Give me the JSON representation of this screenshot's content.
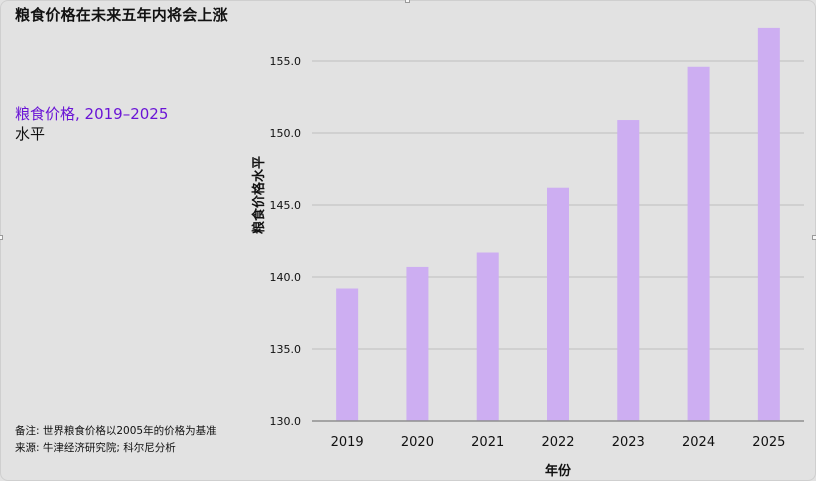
{
  "page": {
    "title": "粮食价格在未来五年内将会上涨",
    "subtitle": "粮食价格, 2019–2025",
    "level_label": "水平",
    "note_line1": "备注: 世界粮食价格以2005年的价格为基准",
    "note_line2": "来源: 牛津经济研究院; 科尔尼分析"
  },
  "chart_data": {
    "type": "bar",
    "categories": [
      "2019",
      "2020",
      "2021",
      "2022",
      "2023",
      "2024",
      "2025"
    ],
    "values": [
      139.2,
      140.7,
      141.7,
      146.2,
      150.9,
      154.6,
      157.3
    ],
    "title": "粮食价格在未来五年内将会上涨",
    "subtitle": "粮食价格, 2019–2025",
    "xlabel": "年份",
    "ylabel": "粮食价格水平",
    "ylim": [
      130,
      157.5
    ],
    "yticks": [
      130,
      135,
      140,
      145,
      150,
      155
    ],
    "ytick_labels": [
      "130.0",
      "135.0",
      "140.0",
      "145.0",
      "150.0",
      "155.0"
    ],
    "grid": true,
    "legend": "none",
    "bar_color": "#cdaef2",
    "grid_color": "#bdbdbd",
    "axis_color": "#8f8f8f"
  }
}
